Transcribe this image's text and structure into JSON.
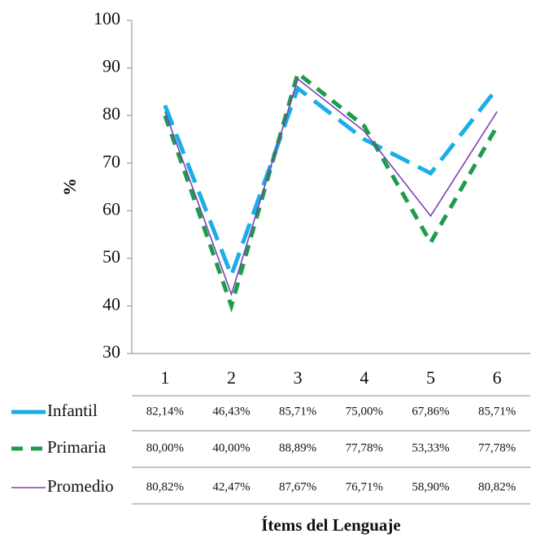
{
  "chart_data": {
    "type": "line",
    "x_label": "Ítems del Lenguaje",
    "y_label": "%",
    "categories": [
      "1",
      "2",
      "3",
      "4",
      "5",
      "6"
    ],
    "ylim": [
      30,
      100
    ],
    "yticks": [
      30,
      40,
      50,
      60,
      70,
      80,
      90,
      100
    ],
    "grid": false,
    "series": [
      {
        "name": "Infantil",
        "color": "#1aaee6",
        "dash": "long-dash",
        "values": [
          82.14,
          46.43,
          85.71,
          75.0,
          67.86,
          85.71
        ],
        "value_labels": [
          "82,14%",
          "46,43%",
          "85,71%",
          "75,00%",
          "67,86%",
          "85,71%"
        ]
      },
      {
        "name": "Primaria",
        "color": "#1e9b4b",
        "dash": "dash",
        "values": [
          80.0,
          40.0,
          88.89,
          77.78,
          53.33,
          77.78
        ],
        "value_labels": [
          "80,00%",
          "40,00%",
          "88,89%",
          "77,78%",
          "53,33%",
          "77,78%"
        ]
      },
      {
        "name": "Promedio",
        "color": "#7e3fb8",
        "dash": "solid",
        "values": [
          80.82,
          42.47,
          87.67,
          76.71,
          58.9,
          80.82
        ],
        "value_labels": [
          "80,82%",
          "42,47%",
          "87,67%",
          "76,71%",
          "58,90%",
          "80,82%"
        ]
      }
    ]
  }
}
